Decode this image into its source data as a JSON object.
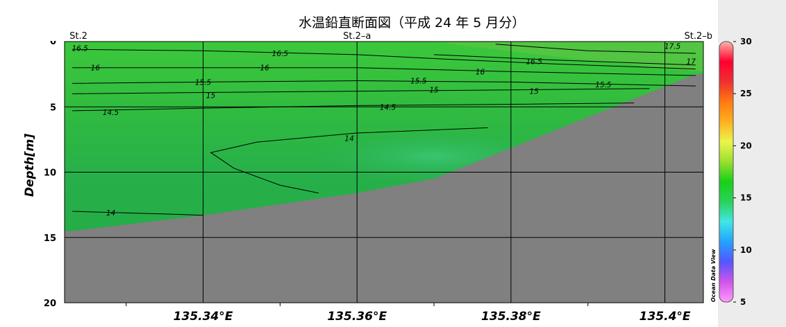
{
  "title": "水温鉛直断面図（平成 24 年 5 月分）",
  "chart_data": {
    "type": "contour",
    "xlabel": "",
    "ylabel": "Depth[m]",
    "xlim": [
      135.322,
      135.405
    ],
    "ylim": [
      0,
      20
    ],
    "x_ticks": [
      135.34,
      135.36,
      135.38,
      135.4
    ],
    "x_tick_labels": [
      "135.34°E",
      "135.36°E",
      "135.38°E",
      "135.4°E"
    ],
    "y_ticks": [
      5,
      10,
      15,
      20
    ],
    "y_tick_labels": [
      "5",
      "10",
      "15",
      "20"
    ],
    "stations": [
      {
        "label": "St.2",
        "lon": 135.323
      },
      {
        "label": "St.2–a",
        "lon": 135.36
      },
      {
        "label": "St.2–b",
        "lon": 135.4
      }
    ],
    "bottom_profile": [
      [
        135.323,
        14.5
      ],
      [
        135.34,
        13.3
      ],
      [
        135.36,
        11.6
      ],
      [
        135.37,
        10.5
      ],
      [
        135.404,
        2.5
      ]
    ],
    "contours": [
      {
        "level": 17.5,
        "points": [
          [
            135.378,
            0.2
          ],
          [
            135.39,
            0.7
          ],
          [
            135.404,
            0.9
          ]
        ],
        "labels": [
          {
            "text": "17.5",
            "x": 135.401,
            "y": 0.35
          }
        ]
      },
      {
        "level": 17,
        "points": [
          [
            135.37,
            1.0
          ],
          [
            135.385,
            1.4
          ],
          [
            135.404,
            1.8
          ]
        ],
        "labels": [
          {
            "text": "17",
            "x": 135.404,
            "y": 1.5
          }
        ]
      },
      {
        "level": 16.5,
        "points": [
          [
            135.323,
            0.6
          ],
          [
            135.34,
            0.7
          ],
          [
            135.36,
            1.0
          ],
          [
            135.37,
            1.3
          ],
          [
            135.385,
            1.7
          ],
          [
            135.404,
            2.1
          ]
        ],
        "labels": [
          {
            "text": "16.5",
            "x": 135.324,
            "y": 0.5
          },
          {
            "text": "16.5",
            "x": 135.35,
            "y": 0.9
          },
          {
            "text": "16.5",
            "x": 135.383,
            "y": 1.5
          }
        ]
      },
      {
        "level": 16,
        "points": [
          [
            135.323,
            2.0
          ],
          [
            135.34,
            2.0
          ],
          [
            135.36,
            2.0
          ],
          [
            135.38,
            2.3
          ],
          [
            135.404,
            2.6
          ]
        ],
        "labels": [
          {
            "text": "16",
            "x": 135.326,
            "y": 2.0
          },
          {
            "text": "16",
            "x": 135.348,
            "y": 2.0
          },
          {
            "text": "16",
            "x": 135.376,
            "y": 2.3
          }
        ]
      },
      {
        "level": 15.5,
        "points": [
          [
            135.323,
            3.2
          ],
          [
            135.34,
            3.1
          ],
          [
            135.36,
            3.0
          ],
          [
            135.38,
            3.1
          ],
          [
            135.404,
            3.4
          ]
        ],
        "labels": [
          {
            "text": "15.5",
            "x": 135.34,
            "y": 3.1
          },
          {
            "text": "15.5",
            "x": 135.368,
            "y": 3.0
          },
          {
            "text": "15.5",
            "x": 135.392,
            "y": 3.3
          }
        ]
      },
      {
        "level": 15,
        "points": [
          [
            135.323,
            4.0
          ],
          [
            135.34,
            3.9
          ],
          [
            135.36,
            3.8
          ],
          [
            135.38,
            3.7
          ],
          [
            135.398,
            3.6
          ]
        ],
        "labels": [
          {
            "text": "15",
            "x": 135.341,
            "y": 4.1
          },
          {
            "text": "15",
            "x": 135.37,
            "y": 3.7
          },
          {
            "text": "15",
            "x": 135.383,
            "y": 3.8
          }
        ]
      },
      {
        "level": 14.5,
        "points": [
          [
            135.323,
            5.3
          ],
          [
            135.34,
            5.1
          ],
          [
            135.36,
            4.9
          ],
          [
            135.38,
            4.8
          ],
          [
            135.396,
            4.7
          ]
        ],
        "labels": [
          {
            "text": "14.5",
            "x": 135.328,
            "y": 5.4
          },
          {
            "text": "14.5",
            "x": 135.364,
            "y": 5.0
          }
        ]
      },
      {
        "level": 14,
        "points": [
          [
            135.377,
            6.6
          ],
          [
            135.36,
            7.0
          ],
          [
            135.347,
            7.7
          ],
          [
            135.341,
            8.5
          ],
          [
            135.344,
            9.7
          ],
          [
            135.35,
            11.0
          ],
          [
            135.355,
            11.6
          ]
        ],
        "labels": [
          {
            "text": "14",
            "x": 135.359,
            "y": 7.4
          }
        ]
      },
      {
        "level": 14,
        "points": [
          [
            135.323,
            13.0
          ],
          [
            135.335,
            13.2
          ],
          [
            135.34,
            13.3
          ]
        ],
        "labels": [
          {
            "text": "14",
            "x": 135.328,
            "y": 13.1
          }
        ]
      }
    ],
    "colorbar": {
      "range": [
        5,
        30
      ],
      "ticks": [
        5,
        10,
        15,
        20,
        25,
        30
      ],
      "tick_labels": [
        "5",
        "10",
        "15",
        "20",
        "25",
        "30"
      ],
      "gradient": [
        "#ff99ff",
        "#d055e8",
        "#5555ff",
        "#22a2ff",
        "#40e6e6",
        "#2ad25a",
        "#18d018",
        "#9adf2e",
        "#ecf54c",
        "#ffb020",
        "#ff7a10",
        "#ee3030",
        "#ff0030",
        "#ffb3a8"
      ]
    },
    "colors": {
      "shallow_water": "#3cc83c",
      "mid_water": "#27b049",
      "core_water": "#35be6b",
      "seabed": "#808080",
      "grid": "#000000"
    },
    "watermark": "Ocean Data View"
  }
}
